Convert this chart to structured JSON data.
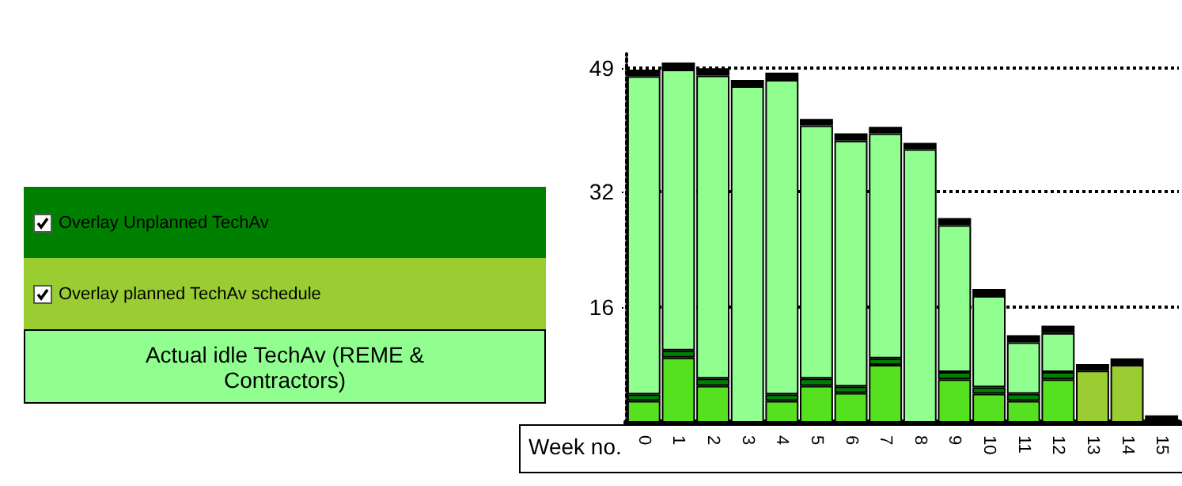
{
  "chart_data": {
    "type": "bar",
    "stacked": true,
    "xlabel": "Week no.",
    "categories": [
      "0",
      "1",
      "2",
      "3",
      "4",
      "5",
      "6",
      "7",
      "8",
      "9",
      "10",
      "11",
      "12",
      "13",
      "14",
      "15"
    ],
    "series": [
      {
        "color": "#55e020",
        "values": [
          3.0,
          9.0,
          5.1,
          null,
          3.0,
          5.1,
          4.1,
          8.0,
          null,
          6.0,
          4.0,
          3.0,
          6.0,
          null,
          null,
          null
        ]
      },
      {
        "name": "Overlay Unplanned TechAv",
        "color": "#008000",
        "values": [
          0.9,
          1.0,
          1.0,
          null,
          0.9,
          1.0,
          0.9,
          0.9,
          null,
          1.0,
          0.9,
          1.0,
          1.0,
          null,
          null,
          null
        ]
      },
      {
        "name": "Overlay planned TechAv schedule",
        "color": "#9acd32",
        "values": [
          null,
          null,
          null,
          null,
          null,
          null,
          null,
          null,
          null,
          null,
          null,
          null,
          null,
          7.2,
          8.0,
          null
        ]
      },
      {
        "name": "Actual idle TechAv (REME & Contractors)",
        "color": "#90ff90",
        "values": [
          44.0,
          38.8,
          41.9,
          46.5,
          43.5,
          35.0,
          34.0,
          31.1,
          37.8,
          20.3,
          12.6,
          7.1,
          5.4,
          null,
          null,
          null
        ]
      },
      {
        "color": "#000000",
        "values": [
          0.9,
          1.0,
          1.0,
          0.9,
          1.0,
          0.9,
          1.0,
          0.9,
          0.9,
          1.0,
          1.0,
          1.0,
          1.0,
          0.9,
          0.9,
          1.0
        ]
      }
    ],
    "ylim": [
      0,
      51
    ],
    "yticks": [
      16,
      32,
      49
    ],
    "grid": "y",
    "legend": "left"
  }
}
